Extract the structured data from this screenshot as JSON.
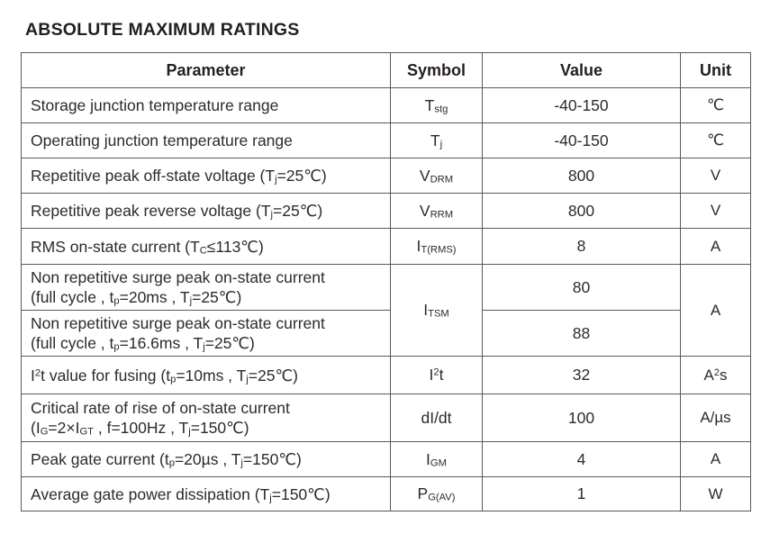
{
  "title": "ABSOLUTE MAXIMUM RATINGS",
  "table": {
    "columns": [
      "Parameter",
      "Symbol",
      "Value",
      "Unit"
    ],
    "rows": [
      {
        "parameter": [
          {
            "t": "Storage junction temperature range"
          }
        ],
        "symbol": [
          {
            "t": "T"
          },
          {
            "t": "stg",
            "s": "sub"
          }
        ],
        "value": "-40-150",
        "unit": [
          {
            "t": "℃"
          }
        ]
      },
      {
        "parameter": [
          {
            "t": "Operating junction temperature range"
          }
        ],
        "symbol": [
          {
            "t": "T"
          },
          {
            "t": "j",
            "s": "sub"
          }
        ],
        "value": "-40-150",
        "unit": [
          {
            "t": "℃"
          }
        ]
      },
      {
        "parameter": [
          {
            "t": "Repetitive peak off-state voltage (T"
          },
          {
            "t": "j",
            "s": "sub"
          },
          {
            "t": "=25℃)"
          }
        ],
        "symbol": [
          {
            "t": "V"
          },
          {
            "t": "DRM",
            "s": "sub"
          }
        ],
        "value": "800",
        "unit": [
          {
            "t": "V"
          }
        ]
      },
      {
        "parameter": [
          {
            "t": "Repetitive peak reverse voltage (T"
          },
          {
            "t": "j",
            "s": "sub"
          },
          {
            "t": "=25℃)"
          }
        ],
        "symbol": [
          {
            "t": "V"
          },
          {
            "t": "RRM",
            "s": "sub"
          }
        ],
        "value": "800",
        "unit": [
          {
            "t": "V"
          }
        ]
      },
      {
        "parameter": [
          {
            "t": "RMS on-state current (T"
          },
          {
            "t": "C",
            "s": "sub"
          },
          {
            "t": "≤113℃)"
          }
        ],
        "symbol": [
          {
            "t": "I"
          },
          {
            "t": "T(RMS)",
            "s": "sub"
          }
        ],
        "value": "8",
        "unit": [
          {
            "t": "A"
          }
        ]
      },
      {
        "parameter": [
          {
            "t": "Non repetitive surge peak on-state current"
          },
          {
            "br": true
          },
          {
            "t": "(full cycle , t"
          },
          {
            "t": "p",
            "s": "sub"
          },
          {
            "t": "=20ms , T"
          },
          {
            "t": "j",
            "s": "sub"
          },
          {
            "t": "=25℃)"
          }
        ],
        "symbol": [
          {
            "t": "I"
          },
          {
            "t": "TSM",
            "s": "sub"
          }
        ],
        "value": "80",
        "unit": [
          {
            "t": "A"
          }
        ]
      },
      {
        "parameter": [
          {
            "t": "Non repetitive surge peak on-state current"
          },
          {
            "br": true
          },
          {
            "t": "(full cycle , t"
          },
          {
            "t": "p",
            "s": "sub"
          },
          {
            "t": "=16.6ms , T"
          },
          {
            "t": "j",
            "s": "sub"
          },
          {
            "t": "=25℃)"
          }
        ],
        "symbol": null,
        "value": "88",
        "unit": null
      },
      {
        "parameter": [
          {
            "t": "I"
          },
          {
            "t": "2",
            "s": "sup"
          },
          {
            "t": "t value for fusing (t"
          },
          {
            "t": "p",
            "s": "sub"
          },
          {
            "t": "=10ms , T"
          },
          {
            "t": "j",
            "s": "sub"
          },
          {
            "t": "=25℃)"
          }
        ],
        "symbol": [
          {
            "t": "I"
          },
          {
            "t": "2",
            "s": "sup"
          },
          {
            "t": "t"
          }
        ],
        "value": "32",
        "unit": [
          {
            "t": "A"
          },
          {
            "t": "2",
            "s": "sup"
          },
          {
            "t": "s"
          }
        ]
      },
      {
        "parameter": [
          {
            "t": "Critical rate of rise of on-state current"
          },
          {
            "br": true
          },
          {
            "t": "(I"
          },
          {
            "t": "G",
            "s": "sub"
          },
          {
            "t": "=2×I"
          },
          {
            "t": "GT",
            "s": "sub"
          },
          {
            "t": " , f=100Hz , T"
          },
          {
            "t": "j",
            "s": "sub"
          },
          {
            "t": "=150℃)"
          }
        ],
        "symbol": [
          {
            "t": "dI/dt"
          }
        ],
        "value": "100",
        "unit": [
          {
            "t": "A/µs"
          }
        ]
      },
      {
        "parameter": [
          {
            "t": "Peak gate current (t"
          },
          {
            "t": "p",
            "s": "sub"
          },
          {
            "t": "=20µs , T"
          },
          {
            "t": "j",
            "s": "sub"
          },
          {
            "t": "=150℃)"
          }
        ],
        "symbol": [
          {
            "t": "I"
          },
          {
            "t": "GM",
            "s": "sub"
          }
        ],
        "value": "4",
        "unit": [
          {
            "t": "A"
          }
        ]
      },
      {
        "parameter": [
          {
            "t": "Average gate power dissipation (T"
          },
          {
            "t": "j",
            "s": "sub"
          },
          {
            "t": "=150℃)"
          }
        ],
        "symbol": [
          {
            "t": "P"
          },
          {
            "t": "G(AV)",
            "s": "sub"
          }
        ],
        "value": "1",
        "unit": [
          {
            "t": "W"
          }
        ]
      }
    ]
  }
}
